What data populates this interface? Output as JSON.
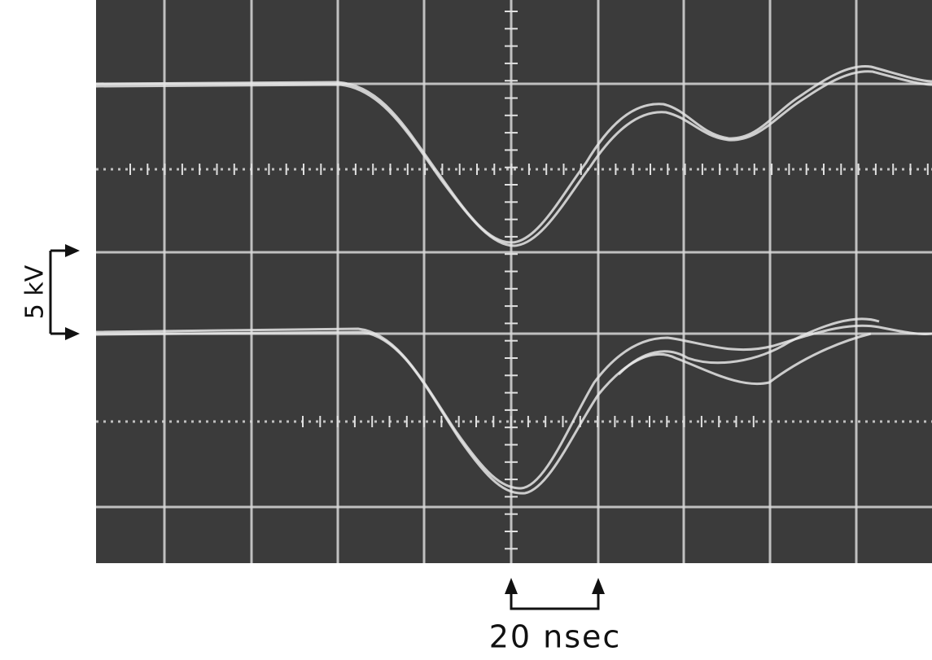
{
  "labels": {
    "voltage_scale": "5 kV",
    "time_scale": "20 nsec"
  }
}
